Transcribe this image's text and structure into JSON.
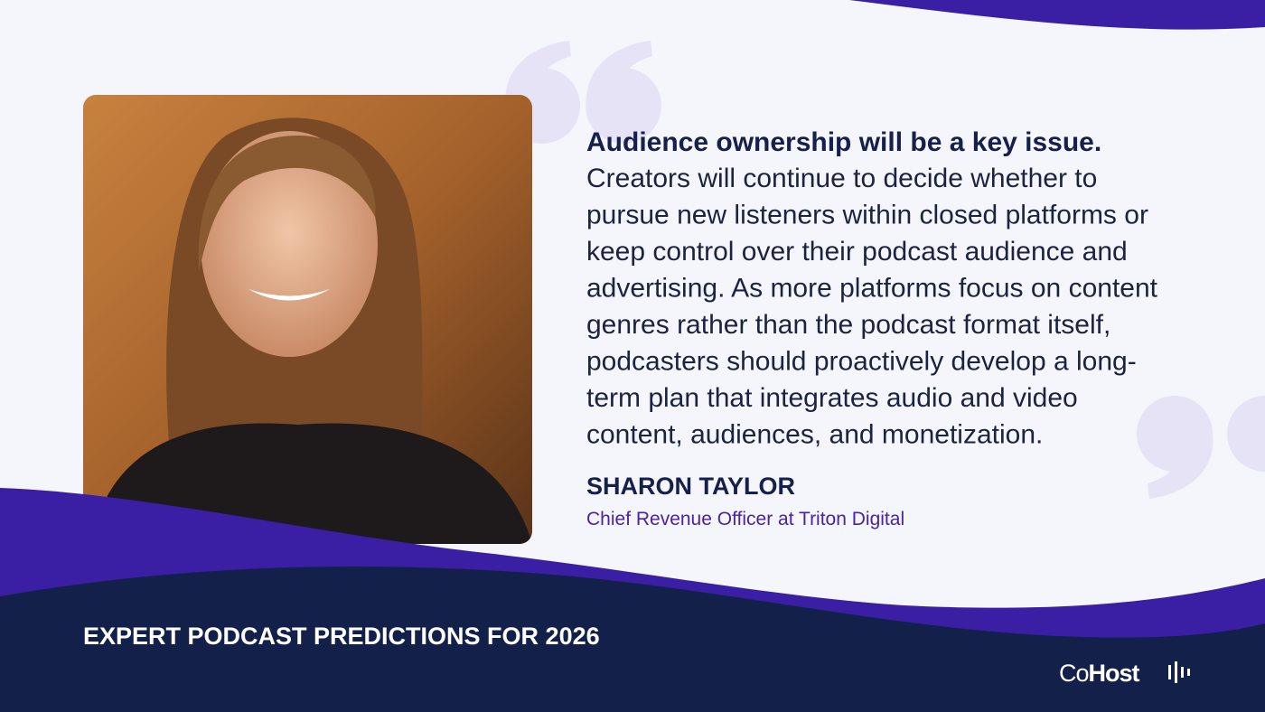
{
  "quote": {
    "lead": "Audience ownership will be a key issue.",
    "lines": [
      "Creators will continue to decide whether to",
      "pursue new listeners within closed platforms or",
      "keep control over their podcast audience and",
      "advertising. As more platforms focus on content",
      "genres rather than the podcast format itself,",
      "podcasters should proactively develop a long-",
      "term plan that integrates audio and video",
      "content, audiences, and monetization."
    ]
  },
  "author": {
    "name": "SHARON TAYLOR",
    "role": "Chief Revenue Officer at Triton Digital"
  },
  "footer": {
    "title": "EXPERT PODCAST PREDICTIONS FOR 2026",
    "logo_light": "Co",
    "logo_bold": "Host"
  }
}
